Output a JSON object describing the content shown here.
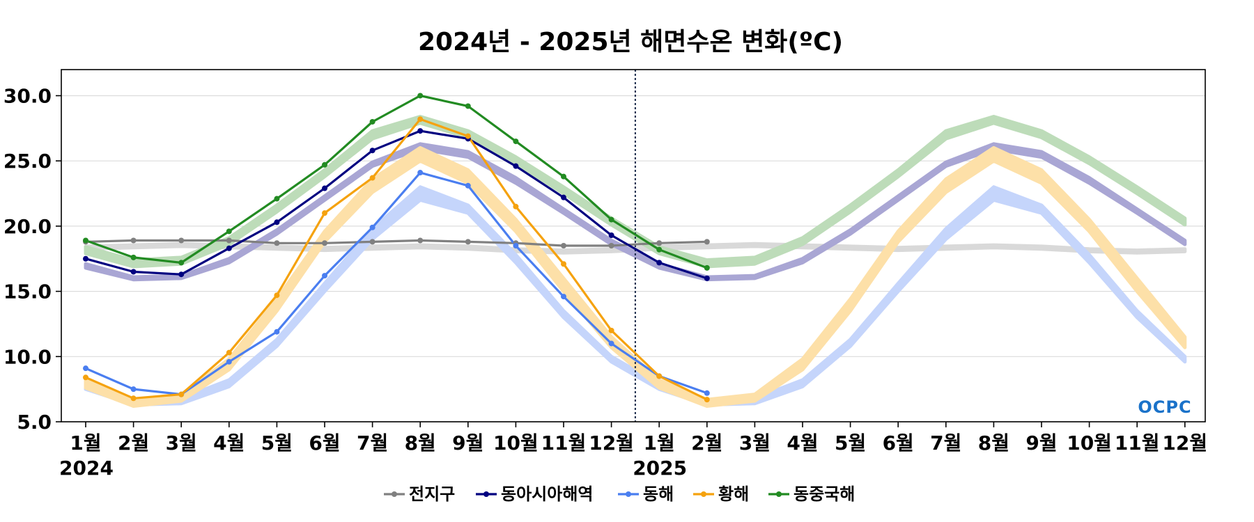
{
  "chart_data": {
    "type": "line",
    "title": "2024년 - 2025년 해면수온 변화(ºC)",
    "xlabel": "",
    "ylabel": "",
    "ylim": [
      5.0,
      32.0
    ],
    "yticks": [
      "5.0",
      "10.0",
      "15.0",
      "20.0",
      "25.0",
      "30.0"
    ],
    "categories": [
      "1월",
      "2월",
      "3월",
      "4월",
      "5월",
      "6월",
      "7월",
      "8월",
      "9월",
      "10월",
      "11월",
      "12월",
      "1월",
      "2월",
      "3월",
      "4월",
      "5월",
      "6월",
      "7월",
      "8월",
      "9월",
      "10월",
      "11월",
      "12월"
    ],
    "year_labels": [
      {
        "index": 0,
        "label": "2024"
      },
      {
        "index": 12,
        "label": "2025"
      }
    ],
    "divider_index": 11.5,
    "grid": "horizontal",
    "legend_position": "bottom-center",
    "series": [
      {
        "name": "전지구",
        "color": "#808080",
        "values": [
          18.8,
          18.9,
          18.9,
          18.9,
          18.7,
          18.7,
          18.8,
          18.9,
          18.8,
          18.7,
          18.5,
          18.5,
          18.7,
          18.8,
          null,
          null,
          null,
          null,
          null,
          null,
          null,
          null,
          null,
          null
        ]
      },
      {
        "name": "동아시아해역",
        "color": "#000080",
        "values": [
          17.5,
          16.5,
          16.3,
          18.3,
          20.3,
          22.9,
          25.8,
          27.3,
          26.7,
          24.6,
          22.2,
          19.3,
          17.2,
          16.0,
          null,
          null,
          null,
          null,
          null,
          null,
          null,
          null,
          null,
          null
        ]
      },
      {
        "name": "동해",
        "color": "#4a7ef0",
        "values": [
          9.1,
          7.5,
          7.1,
          9.6,
          11.9,
          16.2,
          19.9,
          24.1,
          23.1,
          18.5,
          14.6,
          11.0,
          8.5,
          7.2,
          null,
          null,
          null,
          null,
          null,
          null,
          null,
          null,
          null,
          null
        ]
      },
      {
        "name": "황해",
        "color": "#f5a20f",
        "values": [
          8.4,
          6.8,
          7.1,
          10.3,
          14.7,
          21.0,
          23.7,
          28.2,
          26.9,
          21.5,
          17.1,
          12.0,
          8.5,
          6.7,
          null,
          null,
          null,
          null,
          null,
          null,
          null,
          null,
          null,
          null
        ]
      },
      {
        "name": "동중국해",
        "color": "#228b22",
        "values": [
          18.9,
          17.6,
          17.2,
          19.6,
          22.1,
          24.7,
          28.0,
          30.0,
          29.2,
          26.5,
          23.8,
          20.5,
          18.2,
          16.8,
          null,
          null,
          null,
          null,
          null,
          null,
          null,
          null,
          null,
          null
        ]
      }
    ],
    "climatology": [
      {
        "series": "전지구",
        "color": "#d9d9d9",
        "low": [
          18.25,
          18.35,
          18.45,
          18.35,
          18.25,
          18.15,
          18.25,
          18.35,
          18.25,
          18.05,
          17.95,
          18.05
        ],
        "high": [
          18.45,
          18.55,
          18.65,
          18.55,
          18.45,
          18.35,
          18.45,
          18.55,
          18.45,
          18.25,
          18.15,
          18.25
        ]
      },
      {
        "series": "동아시아해역",
        "color": "#a9a6d4",
        "low": [
          16.8,
          15.9,
          16.0,
          17.2,
          19.4,
          22.0,
          24.6,
          25.9,
          25.3,
          23.3,
          21.0,
          18.6
        ],
        "high": [
          17.1,
          16.1,
          16.2,
          17.5,
          19.7,
          22.3,
          24.9,
          26.3,
          25.7,
          23.7,
          21.3,
          18.9
        ]
      },
      {
        "series": "동해",
        "color": "#c5d5fb",
        "low": [
          7.5,
          6.3,
          6.4,
          7.7,
          10.8,
          15.0,
          19.0,
          22.0,
          21.0,
          17.2,
          13.0,
          9.6
        ],
        "high": [
          7.9,
          6.7,
          6.8,
          8.2,
          11.3,
          15.6,
          19.8,
          23.0,
          21.6,
          17.8,
          13.5,
          10.0
        ]
      },
      {
        "series": "황해",
        "color": "#fde0a8",
        "low": [
          7.6,
          6.2,
          6.6,
          9.0,
          13.5,
          18.8,
          22.6,
          25.0,
          23.3,
          19.6,
          15.0,
          10.7
        ],
        "high": [
          8.2,
          6.7,
          7.1,
          9.8,
          14.4,
          19.6,
          23.6,
          26.0,
          24.3,
          20.5,
          16.0,
          11.5
        ]
      },
      {
        "series": "동중국해",
        "color": "#bddcb9",
        "low": [
          17.9,
          16.9,
          17.1,
          18.6,
          21.1,
          23.8,
          26.7,
          27.9,
          26.8,
          24.8,
          22.5,
          20.1
        ],
        "high": [
          18.4,
          17.4,
          17.6,
          19.1,
          21.6,
          24.3,
          27.3,
          28.4,
          27.3,
          25.3,
          23.0,
          20.6
        ]
      }
    ],
    "logo": "OCPC"
  }
}
